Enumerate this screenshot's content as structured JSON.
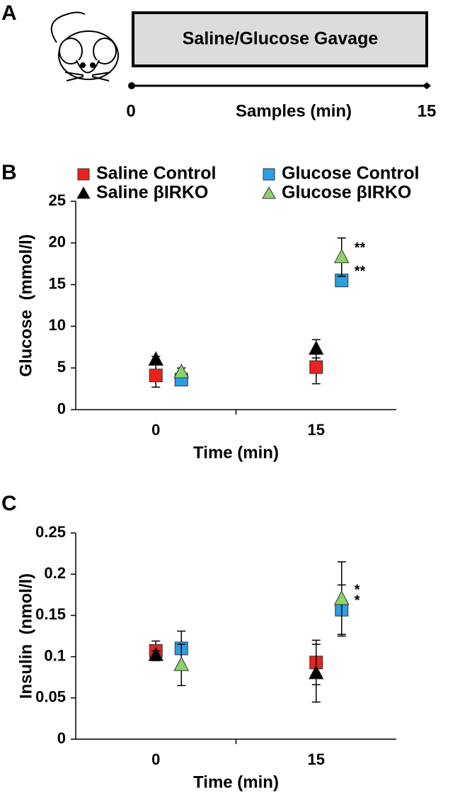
{
  "panel_a": {
    "label": "A",
    "box": "Saline/Glucose Gavage",
    "timeline": {
      "start": "0",
      "label": "Samples (min)",
      "end": "15"
    }
  },
  "chart_data": [
    {
      "type": "scatter",
      "panel_label": "B",
      "ylabel": "Glucose  (mmol/l)",
      "xlabel": "Time (min)",
      "categories": [
        "0",
        "15"
      ],
      "ylim": [
        0,
        25
      ],
      "yticks": [
        0,
        5,
        10,
        15,
        20,
        25
      ],
      "legend": true,
      "series": [
        {
          "name": "Saline Control",
          "color": "#e8231c",
          "marker": "square",
          "values": [
            4.1,
            5.1
          ],
          "errors": [
            1.4,
            2.0
          ]
        },
        {
          "name": "Glucose Control",
          "color": "#2d9ee0",
          "marker": "square",
          "values": [
            3.6,
            15.5
          ],
          "errors": [
            0.5,
            0.7
          ],
          "significance": [
            null,
            "**"
          ]
        },
        {
          "name": "Saline βIRKO",
          "color": "#000000",
          "marker": "triangle",
          "values": [
            6.0,
            7.3
          ],
          "errors": [
            0.4,
            1.1
          ]
        },
        {
          "name": "Glucose βIRKO",
          "color": "#8ed16b",
          "marker": "triangle",
          "values": [
            4.5,
            18.3
          ],
          "errors": [
            0.5,
            2.3
          ],
          "significance": [
            null,
            "**"
          ]
        }
      ]
    },
    {
      "type": "scatter",
      "panel_label": "C",
      "ylabel": "Insulin  (nmol/l)",
      "xlabel": "Time (min)",
      "categories": [
        "0",
        "15"
      ],
      "ylim": [
        0,
        0.25
      ],
      "yticks": [
        0,
        0.05,
        0.1,
        0.15,
        0.2,
        0.25
      ],
      "legend": false,
      "series": [
        {
          "color": "#e8231c",
          "marker": "square",
          "values": [
            0.107,
            0.093
          ],
          "errors": [
            0.012,
            0.027
          ]
        },
        {
          "color": "#2d9ee0",
          "marker": "square",
          "values": [
            0.11,
            0.157
          ],
          "errors": [
            0.021,
            0.03
          ],
          "significance": [
            null,
            "*"
          ]
        },
        {
          "color": "#000000",
          "marker": "triangle",
          "values": [
            0.102,
            0.08
          ],
          "errors": [
            0.005,
            0.035
          ]
        },
        {
          "color": "#8ed16b",
          "marker": "triangle",
          "values": [
            0.09,
            0.17
          ],
          "errors": [
            0.025,
            0.045
          ],
          "significance": [
            null,
            "*"
          ]
        }
      ]
    }
  ]
}
